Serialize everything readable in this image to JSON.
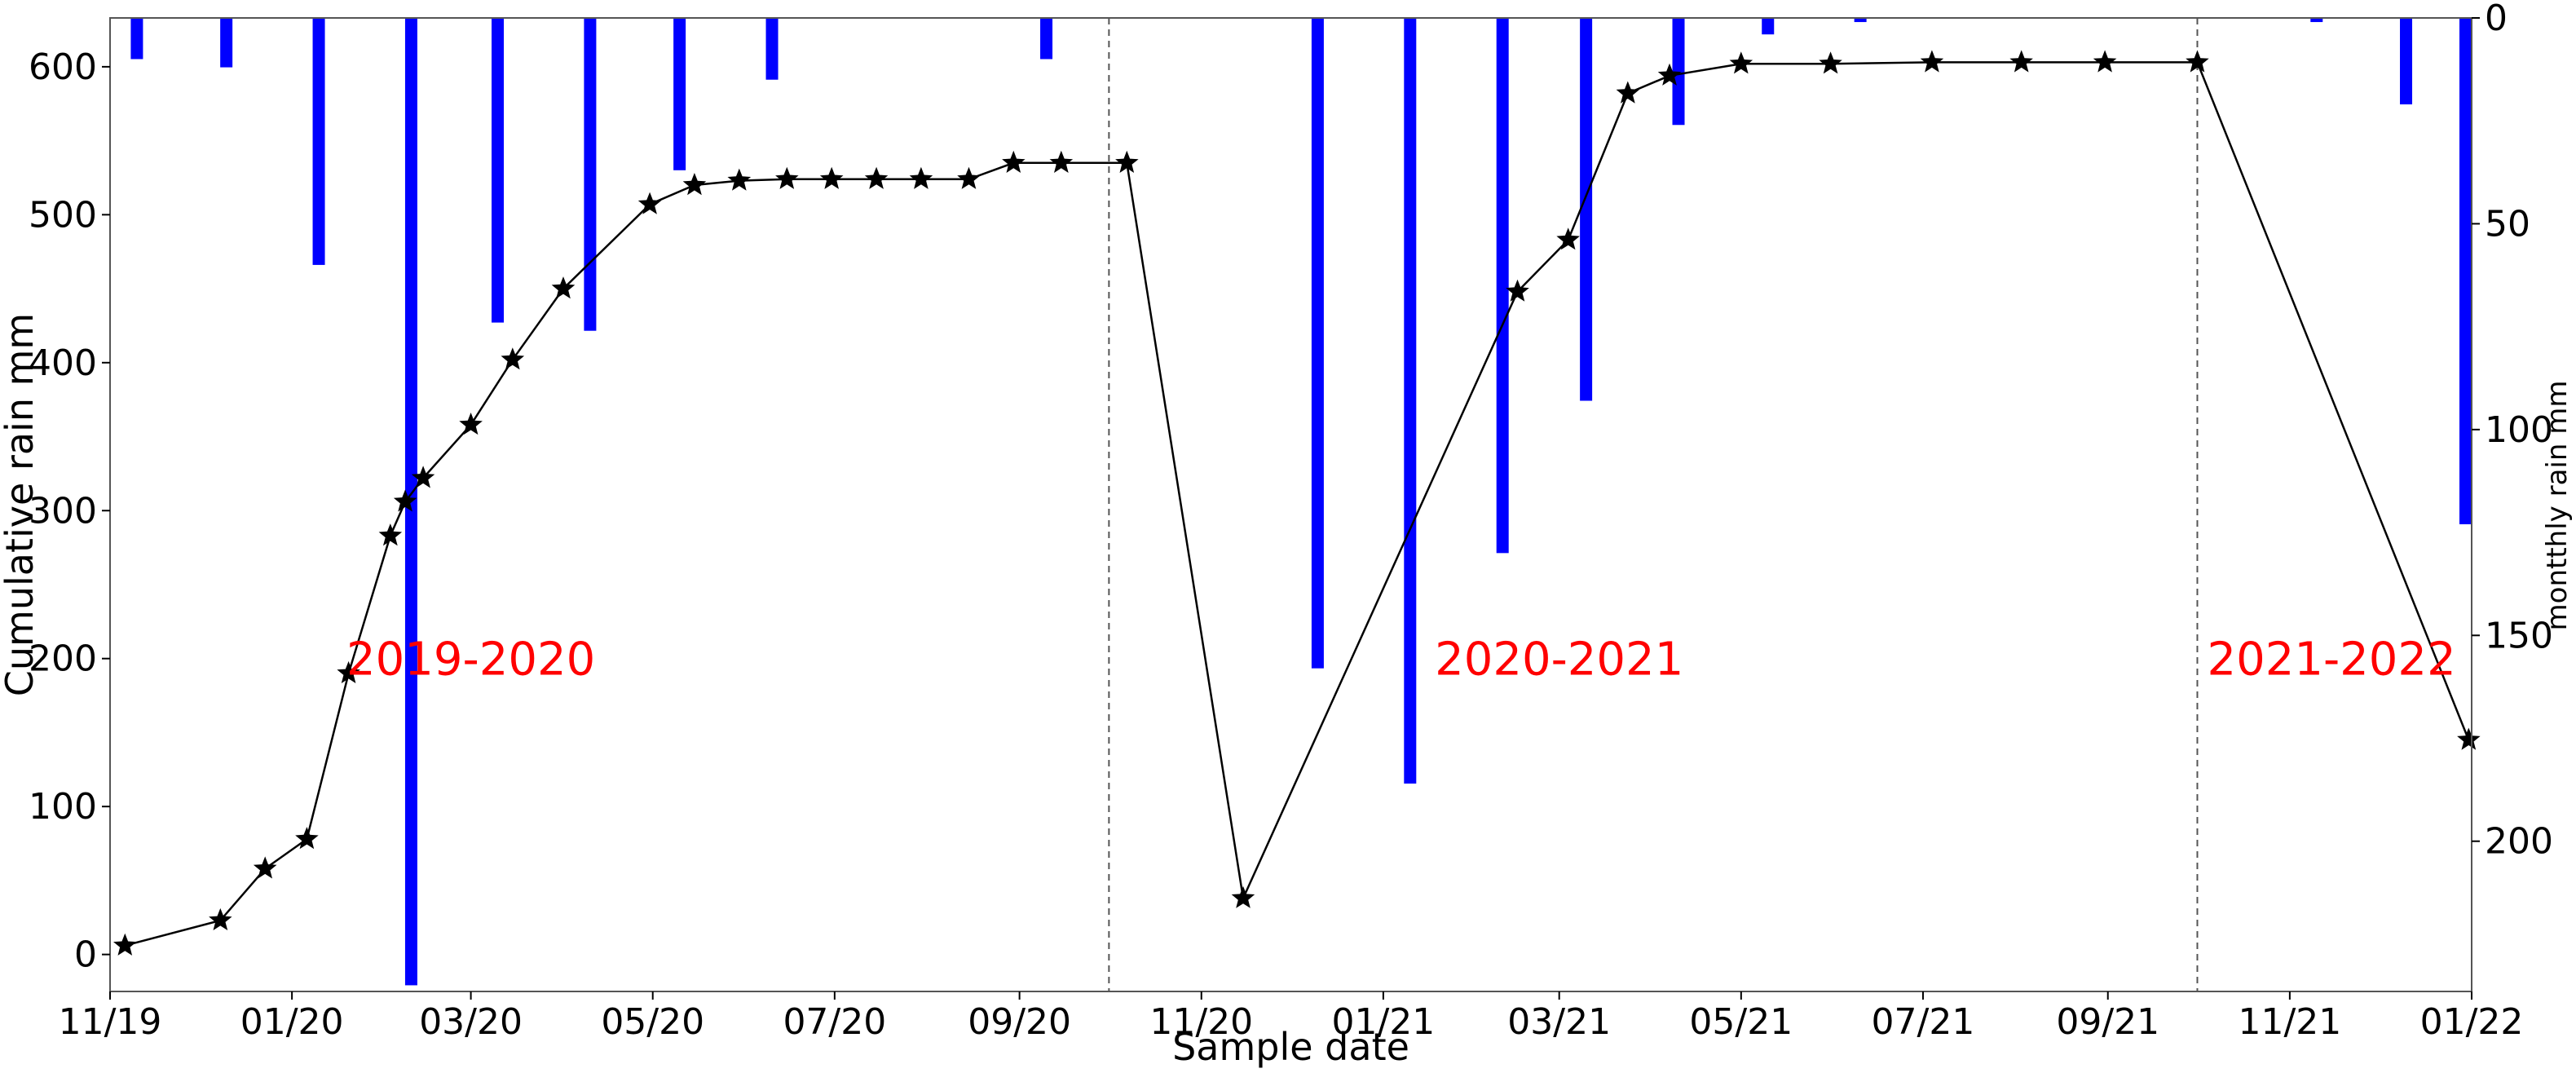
{
  "chart_data": {
    "type": "bar+line",
    "xlabel": "Sample date",
    "ylabel_left": "Cumulative rain mm",
    "ylabel_right": "montthly rain mm",
    "ylim_left": [
      -25,
      633
    ],
    "ylim_right": [
      0,
      236.5
    ],
    "right_axis_inverted": true,
    "yticks_left": [
      0,
      100,
      200,
      300,
      400,
      500,
      600
    ],
    "yticks_right": [
      0,
      50,
      100,
      150,
      200
    ],
    "x_range": [
      "2019-11-01",
      "2022-01-01"
    ],
    "x_ticks": [
      {
        "date": "2019-11-01",
        "label": "11/19"
      },
      {
        "date": "2020-01-01",
        "label": "01/20"
      },
      {
        "date": "2020-03-01",
        "label": "03/20"
      },
      {
        "date": "2020-05-01",
        "label": "05/20"
      },
      {
        "date": "2020-07-01",
        "label": "07/20"
      },
      {
        "date": "2020-09-01",
        "label": "09/20"
      },
      {
        "date": "2020-11-01",
        "label": "11/20"
      },
      {
        "date": "2021-01-01",
        "label": "01/21"
      },
      {
        "date": "2021-03-01",
        "label": "03/21"
      },
      {
        "date": "2021-05-01",
        "label": "05/21"
      },
      {
        "date": "2021-07-01",
        "label": "07/21"
      },
      {
        "date": "2021-09-01",
        "label": "09/21"
      },
      {
        "date": "2021-11-01",
        "label": "11/21"
      },
      {
        "date": "2022-01-01",
        "label": "01/22"
      }
    ],
    "season_separators": [
      "2020-10-01",
      "2021-10-01"
    ],
    "season_labels": [
      {
        "text": "2019-2020",
        "date": "2020-03-01",
        "y": 200,
        "color": "#ff0000"
      },
      {
        "text": "2020-2021",
        "date": "2021-03-01",
        "y": 200,
        "color": "#ff0000"
      },
      {
        "text": "2021-2022",
        "date": "2021-11-15",
        "y": 200,
        "color": "#ff0000"
      }
    ],
    "bar_color": "#0000ff",
    "line_color": "#000000",
    "marker": "star",
    "series": [
      {
        "type": "bar",
        "axis": "right",
        "dates": [
          "2019-11-10",
          "2019-12-10",
          "2020-01-10",
          "2020-02-10",
          "2020-03-10",
          "2020-04-10",
          "2020-05-10",
          "2020-06-10",
          "2020-09-10",
          "2020-12-10",
          "2021-01-10",
          "2021-02-10",
          "2021-03-10",
          "2021-04-10",
          "2021-05-10",
          "2021-06-10",
          "2021-11-10",
          "2021-12-10",
          "2022-01-01"
        ],
        "values": [
          10,
          12,
          60,
          235,
          74,
          76,
          37,
          15,
          10,
          158,
          186,
          130,
          93,
          26,
          4,
          1,
          1,
          21,
          123
        ]
      },
      {
        "type": "line",
        "axis": "left",
        "dates": [
          "2019-11-06",
          "2019-12-08",
          "2019-12-23",
          "2020-01-06",
          "2020-01-20",
          "2020-02-03",
          "2020-02-08",
          "2020-02-14",
          "2020-03-01",
          "2020-03-15",
          "2020-04-01",
          "2020-04-30",
          "2020-05-15",
          "2020-05-30",
          "2020-06-15",
          "2020-06-30",
          "2020-07-15",
          "2020-07-30",
          "2020-08-15",
          "2020-08-30",
          "2020-09-15",
          "2020-10-07",
          "2020-11-15",
          "2021-02-15",
          "2021-03-04",
          "2021-03-24",
          "2021-04-07",
          "2021-05-01",
          "2021-05-31",
          "2021-07-04",
          "2021-08-03",
          "2021-08-31",
          "2021-10-01",
          "2021-12-31"
        ],
        "values": [
          6,
          23,
          58,
          78,
          190,
          283,
          306,
          322,
          358,
          402,
          450,
          507,
          520,
          523,
          524,
          524,
          524,
          524,
          524,
          535,
          535,
          535,
          38,
          448,
          483,
          582,
          594,
          602,
          602,
          603,
          603,
          603,
          603,
          145
        ]
      }
    ]
  }
}
